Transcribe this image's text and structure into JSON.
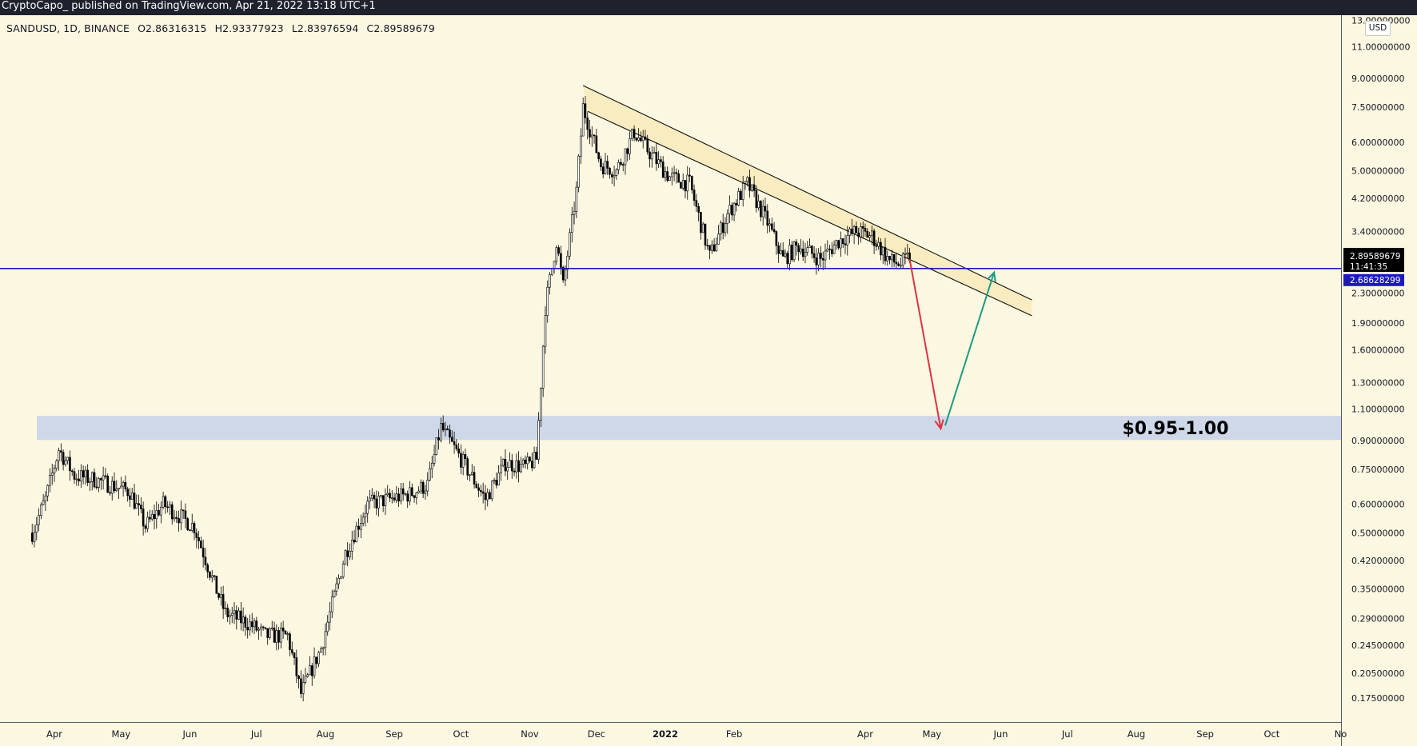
{
  "header": {
    "publisher_line": "CryptoCapo_ published on TradingView.com, Apr 21, 2022 13:18 UTC+1"
  },
  "legend": {
    "symbol": "SANDUSD, 1D, BINANCE",
    "open": "O2.86316315",
    "high": "H2.93377923",
    "low": "L2.83976594",
    "close": "C2.89589679"
  },
  "currency": "USD",
  "price_badges": {
    "last_price": "2.89589679",
    "countdown": "11:41:35",
    "hline_price": "2.68628299"
  },
  "zone_label": "$0.95-1.00",
  "colors": {
    "background": "#fcf7e1",
    "candles": "#000000",
    "support_line": "#1d1ab8",
    "zone": "#cfd8e8",
    "channel_fill": "#f8eabc",
    "down_arrow": "#e0323e",
    "up_arrow": "#1f9a82"
  },
  "chart_data": {
    "type": "candlestick",
    "scale": "log",
    "symbol": "SANDUSD",
    "interval": "1D",
    "exchange": "BINANCE",
    "y_ticks": [
      "13.00000000",
      "11.00000000",
      "9.00000000",
      "7.50000000",
      "6.00000000",
      "5.00000000",
      "4.20000000",
      "3.40000000",
      "2.30000000",
      "1.90000000",
      "1.60000000",
      "1.30000000",
      "1.10000000",
      "0.90000000",
      "0.75000000",
      "0.60000000",
      "0.50000000",
      "0.42000000",
      "0.35000000",
      "0.29000000",
      "0.24500000",
      "0.20500000",
      "0.17500000"
    ],
    "x_ticks": [
      "Apr",
      "May",
      "Jun",
      "Jul",
      "Aug",
      "Sep",
      "Oct",
      "Nov",
      "Dec",
      "2022",
      "Feb",
      "Apr",
      "May",
      "Jun",
      "Jul",
      "Aug",
      "Sep",
      "Oct",
      "No"
    ],
    "ylim": [
      0.155,
      13.2
    ],
    "price_path": [
      {
        "date": "2021-03-22",
        "close": 0.5
      },
      {
        "date": "2021-03-28",
        "close": 0.62
      },
      {
        "date": "2021-04-03",
        "close": 0.85
      },
      {
        "date": "2021-04-10",
        "close": 0.72
      },
      {
        "date": "2021-04-20",
        "close": 0.7
      },
      {
        "date": "2021-05-05",
        "close": 0.65
      },
      {
        "date": "2021-05-12",
        "close": 0.52
      },
      {
        "date": "2021-05-20",
        "close": 0.6
      },
      {
        "date": "2021-06-03",
        "close": 0.52
      },
      {
        "date": "2021-06-12",
        "close": 0.36
      },
      {
        "date": "2021-06-17",
        "close": 0.3
      },
      {
        "date": "2021-06-28",
        "close": 0.28
      },
      {
        "date": "2021-07-05",
        "close": 0.26
      },
      {
        "date": "2021-07-15",
        "close": 0.26
      },
      {
        "date": "2021-07-21",
        "close": 0.18
      },
      {
        "date": "2021-07-30",
        "close": 0.24
      },
      {
        "date": "2021-08-10",
        "close": 0.44
      },
      {
        "date": "2021-08-20",
        "close": 0.6
      },
      {
        "date": "2021-08-30",
        "close": 0.62
      },
      {
        "date": "2021-09-08",
        "close": 0.64
      },
      {
        "date": "2021-09-16",
        "close": 0.68
      },
      {
        "date": "2021-09-22",
        "close": 0.98
      },
      {
        "date": "2021-10-01",
        "close": 0.8
      },
      {
        "date": "2021-10-12",
        "close": 0.62
      },
      {
        "date": "2021-10-21",
        "close": 0.78
      },
      {
        "date": "2021-10-30",
        "close": 0.76
      },
      {
        "date": "2021-11-04",
        "close": 0.8
      },
      {
        "date": "2021-11-08",
        "close": 2.1
      },
      {
        "date": "2021-11-13",
        "close": 3.2
      },
      {
        "date": "2021-11-16",
        "close": 2.4
      },
      {
        "date": "2021-11-22",
        "close": 4.4
      },
      {
        "date": "2021-11-25",
        "close": 7.5
      },
      {
        "date": "2021-12-03",
        "close": 5.2
      },
      {
        "date": "2021-12-10",
        "close": 5.0
      },
      {
        "date": "2021-12-18",
        "close": 6.4
      },
      {
        "date": "2021-12-25",
        "close": 5.6
      },
      {
        "date": "2022-01-03",
        "close": 4.8
      },
      {
        "date": "2022-01-12",
        "close": 4.6
      },
      {
        "date": "2022-01-21",
        "close": 2.9
      },
      {
        "date": "2022-01-29",
        "close": 3.8
      },
      {
        "date": "2022-02-07",
        "close": 4.6
      },
      {
        "date": "2022-02-16",
        "close": 3.6
      },
      {
        "date": "2022-02-23",
        "close": 2.85
      },
      {
        "date": "2022-03-02",
        "close": 3.1
      },
      {
        "date": "2022-03-12",
        "close": 2.85
      },
      {
        "date": "2022-03-20",
        "close": 3.2
      },
      {
        "date": "2022-03-28",
        "close": 3.4
      },
      {
        "date": "2022-04-04",
        "close": 3.3
      },
      {
        "date": "2022-04-12",
        "close": 2.82
      },
      {
        "date": "2022-04-17",
        "close": 2.76
      },
      {
        "date": "2022-04-21",
        "close": 2.896
      }
    ],
    "horizontal_line": 2.68628299,
    "zone": [
      0.95,
      1.0
    ],
    "zone_label": "$0.95-1.00",
    "channel_upper": [
      {
        "date": "2021-11-25",
        "price": 8.6
      },
      {
        "date": "2022-06-15",
        "price": 2.2
      }
    ],
    "channel_lower": [
      {
        "date": "2021-11-27",
        "price": 7.3
      },
      {
        "date": "2022-06-15",
        "price": 1.99
      }
    ],
    "projection_down": [
      {
        "date": "2022-04-21",
        "price": 2.85
      },
      {
        "date": "2022-05-05",
        "price": 0.97
      }
    ],
    "projection_up": [
      {
        "date": "2022-05-07",
        "price": 0.99
      },
      {
        "date": "2022-05-29",
        "price": 2.62
      }
    ]
  }
}
